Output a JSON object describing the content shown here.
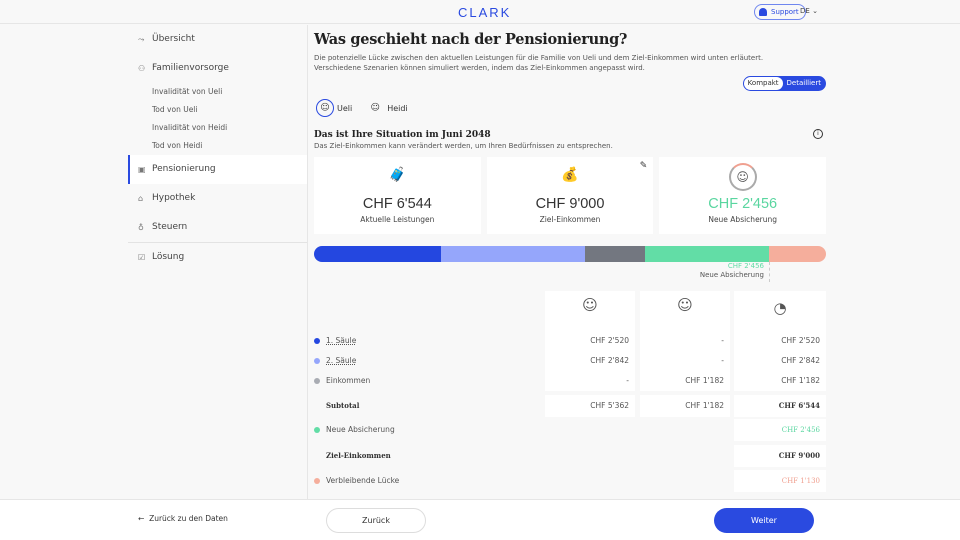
{
  "header": {
    "logo": "CLARK",
    "support": "Support",
    "lang": "DE"
  },
  "sidebar": {
    "items": [
      {
        "label": "Übersicht",
        "icon": "overview-icon"
      },
      {
        "label": "Familienvorsorge",
        "icon": "family-icon",
        "sub": [
          "Invalidität von Ueli",
          "Tod von Ueli",
          "Invalidität von Heidi",
          "Tod von Heidi"
        ]
      },
      {
        "label": "Pensionierung",
        "icon": "suitcase-icon",
        "active": true
      },
      {
        "label": "Hypothek",
        "icon": "house-icon"
      },
      {
        "label": "Steuern",
        "icon": "money-bag-icon"
      },
      {
        "label": "Lösung",
        "icon": "solution-icon"
      }
    ]
  },
  "main": {
    "title": "Was geschieht nach der Pensionierung?",
    "desc1": "Die potenzielle Lücke zwischen den aktuellen Leistungen für die Familie von Ueli und dem Ziel-Einkommen wird unten erläutert.",
    "desc2": "Verschiedene Szenarien können simuliert werden, indem das Ziel-Einkommen angepasst wird.",
    "toggle": {
      "a": "Kompakt",
      "b": "Detailliert",
      "selected": "Detailliert"
    },
    "persons": [
      "Ueli",
      "Heidi"
    ],
    "situation_title": "Das ist Ihre Situation im Juni 2048",
    "situation_desc": "Das Ziel-Einkommen kann verändert werden, um Ihren Bedürfnissen zu entsprechen.",
    "cards": [
      {
        "value": "CHF 6'544",
        "label": "Aktuelle Leistungen"
      },
      {
        "value": "CHF 9'000",
        "label": "Ziel-Einkommen"
      },
      {
        "value": "CHF 2'456",
        "label": "Neue Absicherung"
      }
    ],
    "bar": {
      "segments": [
        {
          "value": 2520,
          "color": "#2447e0"
        },
        {
          "value": 2842,
          "color": "#95a6fb"
        },
        {
          "value": 1182,
          "color": "#737780"
        },
        {
          "value": 2456,
          "color": "#62dda6"
        },
        {
          "value": 1130,
          "color": "#f5ae9c"
        }
      ],
      "marker_value": "CHF 2'456",
      "marker_label": "Neue Absicherung"
    },
    "table": {
      "rows": [
        {
          "label": "1. Säule",
          "color": "#2447e0",
          "c1": "CHF 2'520",
          "c2": "-",
          "c3": "CHF 2'520"
        },
        {
          "label": "2. Säule",
          "color": "#95a6fb",
          "c1": "CHF 2'842",
          "c2": "-",
          "c3": "CHF 2'842"
        },
        {
          "label": "Einkommen",
          "color": "#a9acb3",
          "c1": "-",
          "c2": "CHF 1'182",
          "c3": "CHF 1'182"
        },
        {
          "label": "Subtotal",
          "c1": "CHF 5'362",
          "c2": "CHF 1'182",
          "c3": "CHF 6'544"
        },
        {
          "label": "Neue Absicherung",
          "color": "#62dda6",
          "c3": "CHF 2'456"
        },
        {
          "label": "Ziel-Einkommen",
          "c3": "CHF 9'000"
        },
        {
          "label": "Verbleibende Lücke",
          "color": "#f5ae9c",
          "c3": "CHF 1'130"
        }
      ]
    }
  },
  "footer": {
    "back": "Zurück zu den Daten",
    "prev": "Zurück",
    "next": "Weiter"
  }
}
